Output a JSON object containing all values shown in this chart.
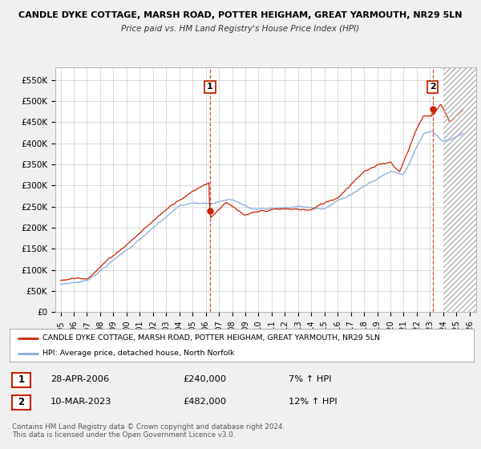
{
  "title": "CANDLE DYKE COTTAGE, MARSH ROAD, POTTER HEIGHAM, GREAT YARMOUTH, NR29 5LN",
  "subtitle": "Price paid vs. HM Land Registry's House Price Index (HPI)",
  "red_label": "CANDLE DYKE COTTAGE, MARSH ROAD, POTTER HEIGHAM, GREAT YARMOUTH, NR29 5LN",
  "blue_label": "HPI: Average price, detached house, North Norfolk",
  "annotation1": {
    "num": "1",
    "date": "28-APR-2006",
    "price": "£240,000",
    "change": "7% ↑ HPI"
  },
  "annotation2": {
    "num": "2",
    "date": "10-MAR-2023",
    "price": "£482,000",
    "change": "12% ↑ HPI"
  },
  "footer": "Contains HM Land Registry data © Crown copyright and database right 2024.\nThis data is licensed under the Open Government Licence v3.0.",
  "ylim": [
    0,
    580000
  ],
  "yticks": [
    0,
    50000,
    100000,
    150000,
    200000,
    250000,
    300000,
    350000,
    400000,
    450000,
    500000,
    550000
  ],
  "ytick_labels": [
    "£0",
    "£50K",
    "£100K",
    "£150K",
    "£200K",
    "£250K",
    "£300K",
    "£350K",
    "£400K",
    "£450K",
    "£500K",
    "£550K"
  ],
  "background_color": "#f0f0f0",
  "plot_bg_color": "#ffffff",
  "red_color": "#cc2200",
  "blue_color": "#88aadd",
  "sale1_x": 2006.32,
  "sale1_y": 240000,
  "sale2_x": 2023.19,
  "sale2_y": 482000,
  "xmin": 1994.6,
  "xmax": 2026.5,
  "hatch_start": 2024.0
}
